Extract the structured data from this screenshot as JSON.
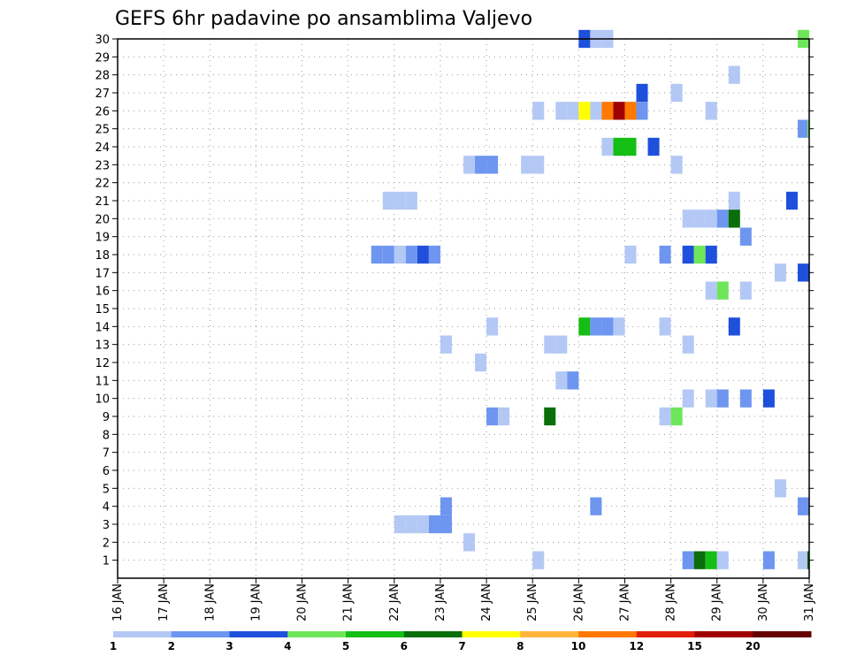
{
  "chart_data": {
    "type": "heatmap",
    "title": "GEFS 6hr padavine po ansamblima Valjevo",
    "x_tick_labels": [
      "16 JAN",
      "17 JAN",
      "18 JAN",
      "19 JAN",
      "20 JAN",
      "21 JAN",
      "22 JAN",
      "23 JAN",
      "24 JAN",
      "25 JAN",
      "26 JAN",
      "27 JAN",
      "28 JAN",
      "29 JAN",
      "30 JAN",
      "31 JAN"
    ],
    "x_unit": "day index from 16 JAN 00Z (6-hourly steps of 0.25)",
    "xlim": [
      0,
      15
    ],
    "y_tick_labels": [
      "1",
      "2",
      "3",
      "4",
      "5",
      "6",
      "7",
      "8",
      "9",
      "10",
      "11",
      "12",
      "13",
      "14",
      "15",
      "16",
      "17",
      "18",
      "19",
      "20",
      "21",
      "22",
      "23",
      "24",
      "25",
      "26",
      "27",
      "28",
      "29",
      "30"
    ],
    "ylim": [
      0,
      30
    ],
    "y_unit": "ensemble member (0 = control)",
    "grid": "dotted",
    "colorbar": {
      "boundaries": [
        "1",
        "2",
        "3",
        "4",
        "5",
        "6",
        "7",
        "8",
        "10",
        "12",
        "15",
        "20"
      ],
      "colors": [
        "#b4c8f5",
        "#6e96f0",
        "#1e50dc",
        "#6ee65a",
        "#14be14",
        "#0a6e0a",
        "#ffff00",
        "#ffb43c",
        "#ff7800",
        "#e11e0a",
        "#a00000",
        "#640000"
      ]
    },
    "cells": [
      {
        "x": 10.0,
        "y": 30,
        "c": 2
      },
      {
        "x": 10.25,
        "y": 30,
        "c": 0
      },
      {
        "x": 10.5,
        "y": 30,
        "c": 0
      },
      {
        "x": 14.75,
        "y": 30,
        "c": 3
      },
      {
        "x": 13.25,
        "y": 28,
        "c": 0
      },
      {
        "x": 11.25,
        "y": 27,
        "c": 2
      },
      {
        "x": 12.0,
        "y": 27,
        "c": 0
      },
      {
        "x": 9.0,
        "y": 26,
        "c": 0
      },
      {
        "x": 9.5,
        "y": 26,
        "c": 0
      },
      {
        "x": 9.75,
        "y": 26,
        "c": 0
      },
      {
        "x": 10.0,
        "y": 26,
        "c": 6
      },
      {
        "x": 10.25,
        "y": 26,
        "c": 0
      },
      {
        "x": 10.5,
        "y": 26,
        "c": 8
      },
      {
        "x": 10.75,
        "y": 26,
        "c": 10
      },
      {
        "x": 11.0,
        "y": 26,
        "c": 8
      },
      {
        "x": 11.25,
        "y": 26,
        "c": 1
      },
      {
        "x": 12.75,
        "y": 26,
        "c": 0
      },
      {
        "x": 14.75,
        "y": 25,
        "c": 1
      },
      {
        "x": 14.96,
        "y": 25,
        "c": 3
      },
      {
        "x": 10.5,
        "y": 24,
        "c": 0
      },
      {
        "x": 10.75,
        "y": 24,
        "c": 4
      },
      {
        "x": 11.0,
        "y": 24,
        "c": 4
      },
      {
        "x": 11.5,
        "y": 24,
        "c": 2
      },
      {
        "x": 7.5,
        "y": 23,
        "c": 0
      },
      {
        "x": 7.75,
        "y": 23,
        "c": 1
      },
      {
        "x": 8.0,
        "y": 23,
        "c": 1
      },
      {
        "x": 8.75,
        "y": 23,
        "c": 0
      },
      {
        "x": 9.0,
        "y": 23,
        "c": 0
      },
      {
        "x": 12.0,
        "y": 23,
        "c": 0
      },
      {
        "x": 5.75,
        "y": 21,
        "c": 0
      },
      {
        "x": 6.0,
        "y": 21,
        "c": 0
      },
      {
        "x": 6.25,
        "y": 21,
        "c": 0
      },
      {
        "x": 13.25,
        "y": 21,
        "c": 0
      },
      {
        "x": 14.5,
        "y": 21,
        "c": 2
      },
      {
        "x": 12.25,
        "y": 20,
        "c": 0
      },
      {
        "x": 12.5,
        "y": 20,
        "c": 0
      },
      {
        "x": 12.75,
        "y": 20,
        "c": 0
      },
      {
        "x": 13.0,
        "y": 20,
        "c": 1
      },
      {
        "x": 13.25,
        "y": 20,
        "c": 5
      },
      {
        "x": 13.5,
        "y": 19,
        "c": 1
      },
      {
        "x": 5.5,
        "y": 18,
        "c": 1
      },
      {
        "x": 5.75,
        "y": 18,
        "c": 1
      },
      {
        "x": 6.0,
        "y": 18,
        "c": 0
      },
      {
        "x": 6.25,
        "y": 18,
        "c": 1
      },
      {
        "x": 6.5,
        "y": 18,
        "c": 2
      },
      {
        "x": 6.75,
        "y": 18,
        "c": 1
      },
      {
        "x": 11.0,
        "y": 18,
        "c": 0
      },
      {
        "x": 11.75,
        "y": 18,
        "c": 1
      },
      {
        "x": 12.25,
        "y": 18,
        "c": 2
      },
      {
        "x": 12.5,
        "y": 18,
        "c": 3
      },
      {
        "x": 12.75,
        "y": 18,
        "c": 2
      },
      {
        "x": 14.25,
        "y": 17,
        "c": 0
      },
      {
        "x": 14.75,
        "y": 17,
        "c": 2
      },
      {
        "x": 12.75,
        "y": 16,
        "c": 0
      },
      {
        "x": 13.0,
        "y": 16,
        "c": 3
      },
      {
        "x": 13.5,
        "y": 16,
        "c": 0
      },
      {
        "x": 10.0,
        "y": 14,
        "c": 4
      },
      {
        "x": 10.25,
        "y": 14,
        "c": 1
      },
      {
        "x": 10.5,
        "y": 14,
        "c": 1
      },
      {
        "x": 10.75,
        "y": 14,
        "c": 0
      },
      {
        "x": 8.0,
        "y": 14,
        "c": 0
      },
      {
        "x": 11.75,
        "y": 14,
        "c": 0
      },
      {
        "x": 13.25,
        "y": 14,
        "c": 2
      },
      {
        "x": 7.0,
        "y": 13,
        "c": 0
      },
      {
        "x": 9.25,
        "y": 13,
        "c": 0
      },
      {
        "x": 9.5,
        "y": 13,
        "c": 0
      },
      {
        "x": 12.25,
        "y": 13,
        "c": 0
      },
      {
        "x": 7.75,
        "y": 12,
        "c": 0
      },
      {
        "x": 9.5,
        "y": 11,
        "c": 0
      },
      {
        "x": 9.75,
        "y": 11,
        "c": 1
      },
      {
        "x": 12.25,
        "y": 10,
        "c": 0
      },
      {
        "x": 12.75,
        "y": 10,
        "c": 0
      },
      {
        "x": 13.0,
        "y": 10,
        "c": 1
      },
      {
        "x": 13.5,
        "y": 10,
        "c": 1
      },
      {
        "x": 14.0,
        "y": 10,
        "c": 2
      },
      {
        "x": 8.0,
        "y": 9,
        "c": 1
      },
      {
        "x": 8.25,
        "y": 9,
        "c": 0
      },
      {
        "x": 9.25,
        "y": 9,
        "c": 5
      },
      {
        "x": 11.75,
        "y": 9,
        "c": 0
      },
      {
        "x": 12.0,
        "y": 9,
        "c": 3
      },
      {
        "x": 14.25,
        "y": 5,
        "c": 0
      },
      {
        "x": 7.0,
        "y": 4,
        "c": 1
      },
      {
        "x": 10.25,
        "y": 4,
        "c": 1
      },
      {
        "x": 14.75,
        "y": 4,
        "c": 1
      },
      {
        "x": 6.0,
        "y": 3,
        "c": 0
      },
      {
        "x": 6.25,
        "y": 3,
        "c": 0
      },
      {
        "x": 6.5,
        "y": 3,
        "c": 0
      },
      {
        "x": 6.75,
        "y": 3,
        "c": 1
      },
      {
        "x": 7.0,
        "y": 3,
        "c": 1
      },
      {
        "x": 7.5,
        "y": 2,
        "c": 0
      },
      {
        "x": 9.0,
        "y": 1,
        "c": 0
      },
      {
        "x": 12.25,
        "y": 1,
        "c": 1
      },
      {
        "x": 12.5,
        "y": 1,
        "c": 5
      },
      {
        "x": 12.75,
        "y": 1,
        "c": 4
      },
      {
        "x": 13.0,
        "y": 1,
        "c": 0
      },
      {
        "x": 14.0,
        "y": 1,
        "c": 1
      },
      {
        "x": 14.75,
        "y": 1,
        "c": 0
      },
      {
        "x": 14.96,
        "y": 1,
        "c": 5
      }
    ]
  }
}
